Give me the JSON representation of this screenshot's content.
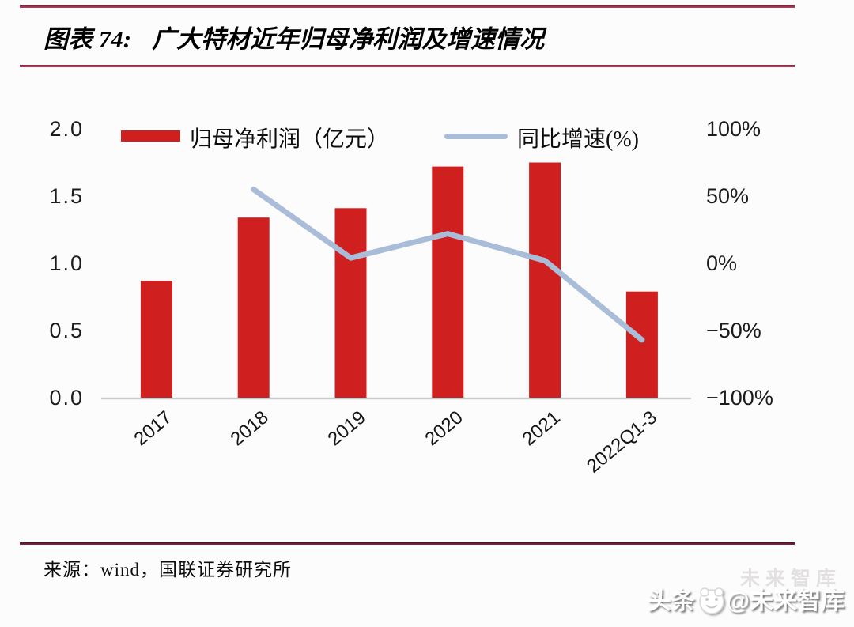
{
  "figure": {
    "label": "图表 74:",
    "title": "广大特材近年归母净利润及增速情况",
    "source": "来源：wind，国联证券研究所"
  },
  "watermark": {
    "ghost": "未来智库",
    "prefix": "头条",
    "suffix": "@未来智库",
    "logo": "future-thinktank-panda-logo"
  },
  "chart_data": {
    "type": "bar+line combo",
    "title": "广大特材近年归母净利润及增速情况",
    "categories": [
      "2017",
      "2018",
      "2019",
      "2020",
      "2021",
      "2022Q1-3"
    ],
    "series": [
      {
        "name": "归母净利润（亿元）",
        "type": "bar",
        "axis": "left",
        "color": "#d01f1f",
        "values": [
          0.87,
          1.34,
          1.41,
          1.72,
          1.75,
          0.79
        ]
      },
      {
        "name": "同比增速(%)",
        "type": "line",
        "axis": "right",
        "color": "#a9bcd8",
        "values": [
          null,
          55,
          4,
          22,
          2,
          -57
        ]
      }
    ],
    "left_axis": {
      "min": 0,
      "max": 2.0,
      "ticks": [
        "2.0",
        "1.5",
        "1.0",
        "0.5",
        "0.0"
      ]
    },
    "right_axis": {
      "min": -100,
      "max": 100,
      "ticks": [
        "100%",
        "50%",
        "0%",
        "−50%",
        "−100%"
      ]
    },
    "legend_position": "top",
    "grid": false,
    "baseline_color": "#c9c9c9"
  },
  "colors": {
    "rule_top": "#9e2b4b",
    "rule_under_title": "#9e2b4b",
    "rule_above_source": "#6e1a30",
    "bar": "#d01f1f",
    "line": "#a9bcd8",
    "text": "#111111"
  }
}
